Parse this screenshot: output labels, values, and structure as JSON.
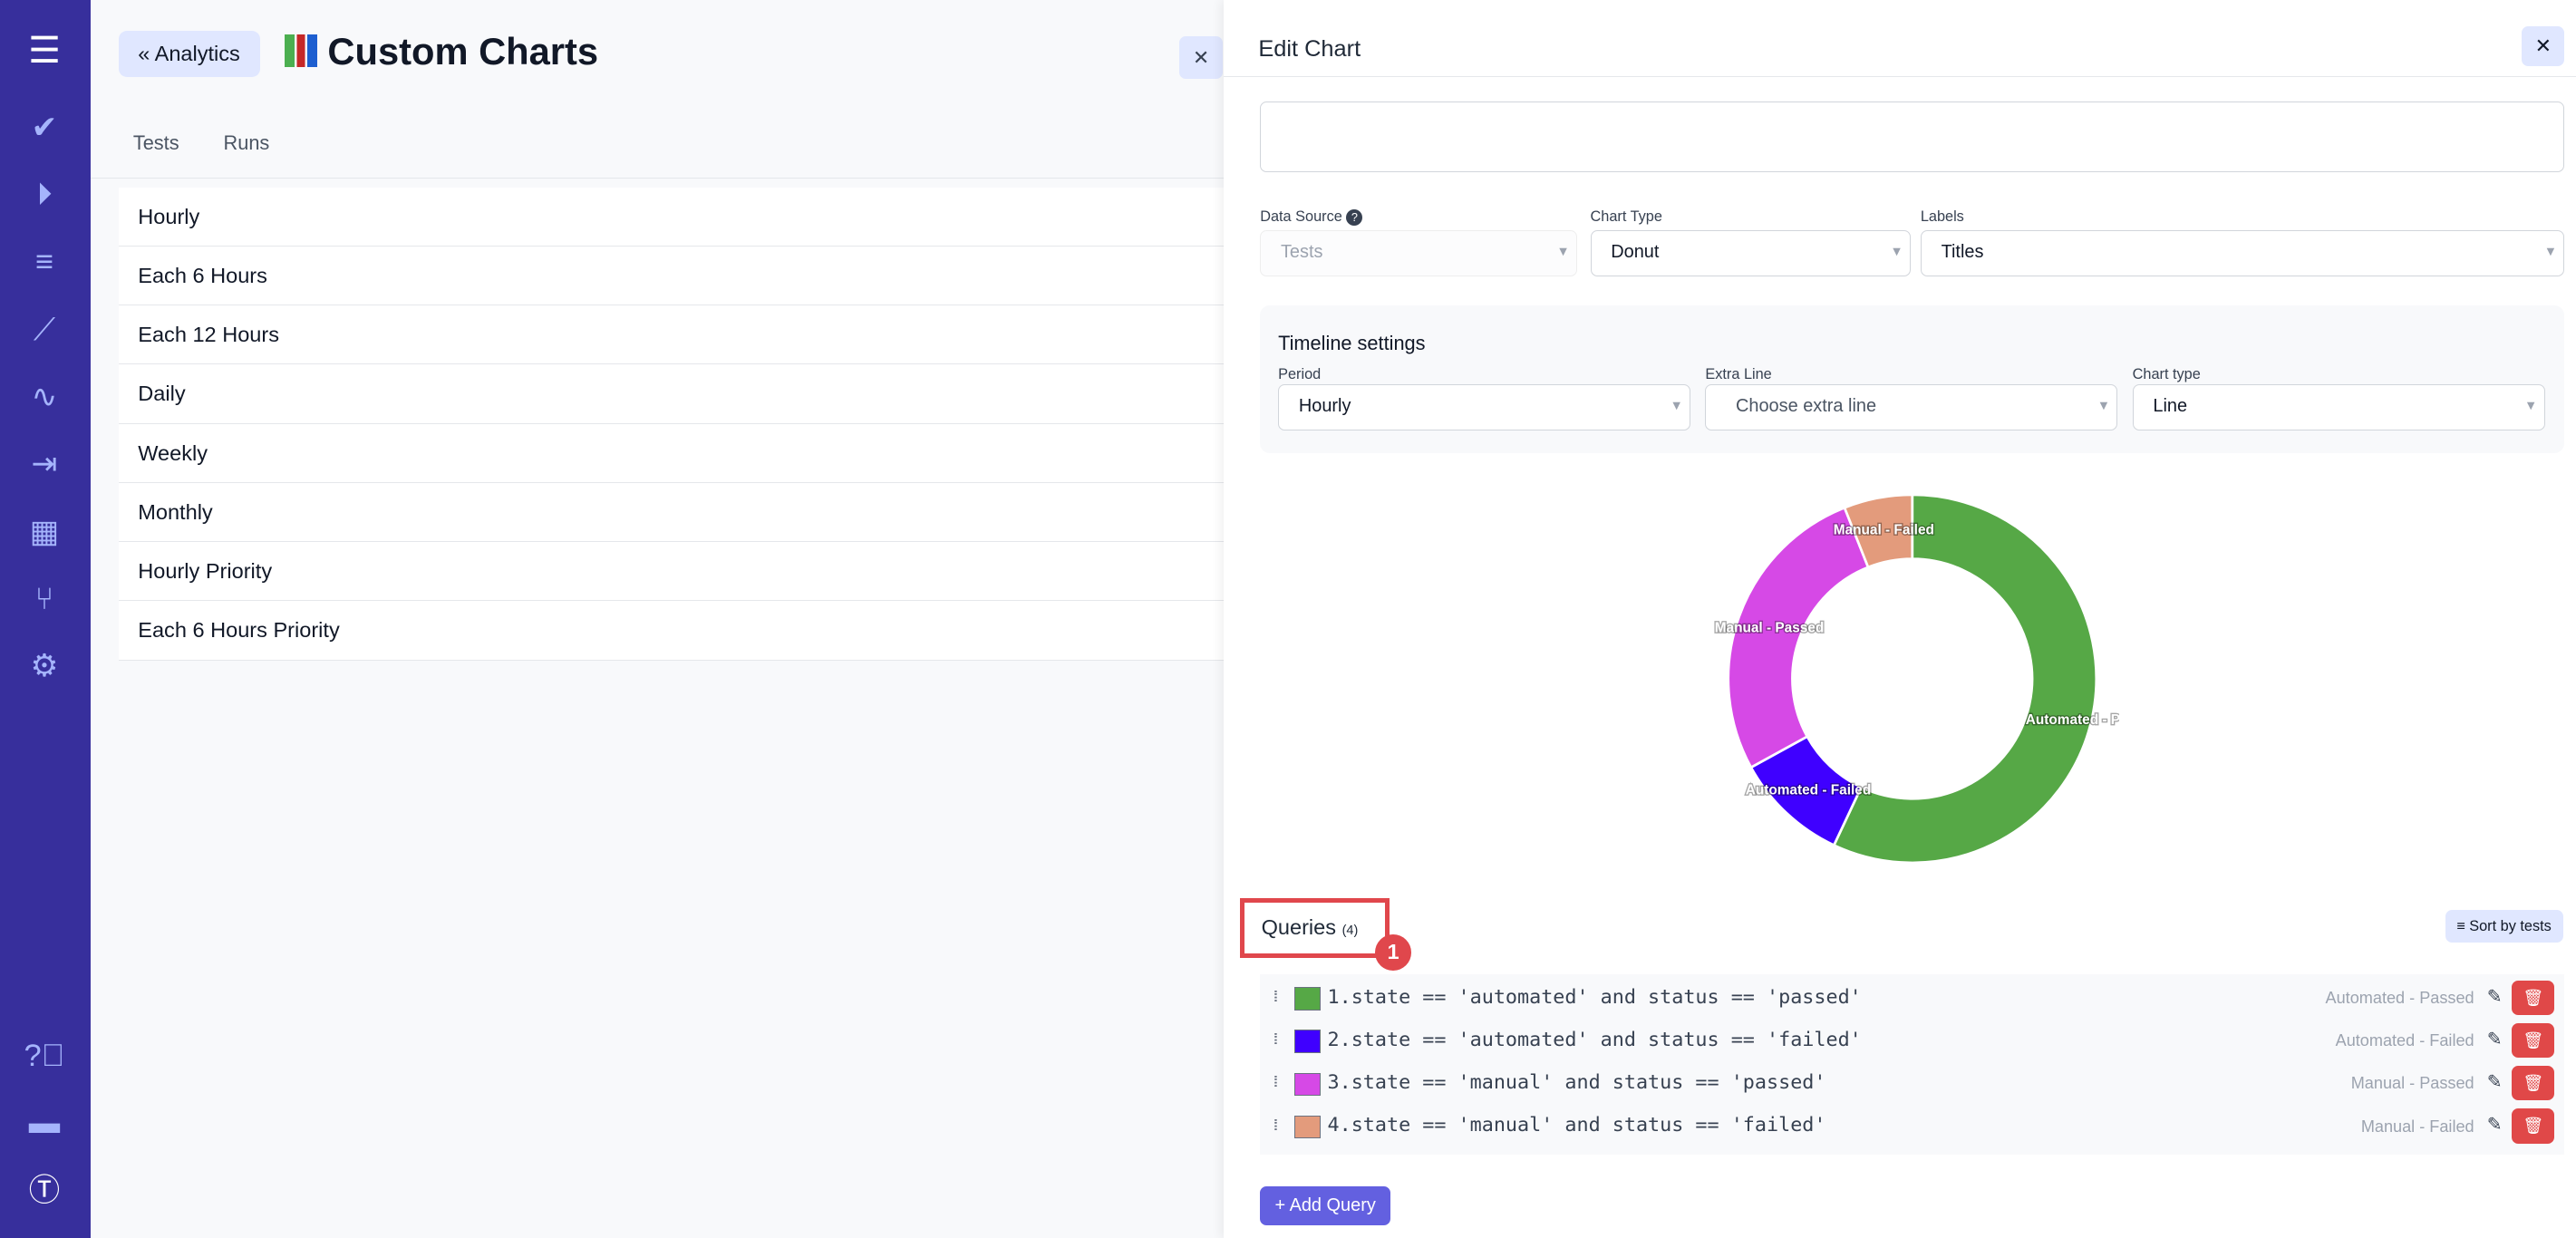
{
  "sidebar": {
    "icons": [
      "menu-icon",
      "check-icon",
      "play-icon",
      "list-check-icon",
      "steps-icon",
      "pulse-icon",
      "import-icon",
      "analytics-icon",
      "branch-icon",
      "gear-icon",
      "help-icon",
      "folder-icon",
      "logo-icon"
    ],
    "color": "#372f9c"
  },
  "header": {
    "back_label": "Analytics",
    "title": "Custom Charts",
    "title_icon": "bar-chart-emoji"
  },
  "tabs": [
    "Tests",
    "Runs"
  ],
  "list": [
    "Hourly",
    "Each 6 Hours",
    "Each 12 Hours",
    "Daily",
    "Weekly",
    "Monthly",
    "Hourly Priority",
    "Each 6 Hours Priority"
  ],
  "panel": {
    "title": "Edit Chart",
    "data_source": {
      "label": "Data Source",
      "value": "Tests"
    },
    "chart_type": {
      "label": "Chart Type",
      "value": "Donut"
    },
    "labels": {
      "label": "Labels",
      "value": "Titles"
    },
    "timeline": {
      "title": "Timeline settings",
      "period_label": "Period",
      "period": "Hourly",
      "extra_label": "Extra Line",
      "extra_placeholder": "Choose extra line",
      "type_label": "Chart type",
      "type": "Line"
    },
    "queries_title": "Queries",
    "queries_count": "(4)",
    "annotation": "1",
    "sort_label": "Sort by tests",
    "queries": [
      {
        "code": "1.state == 'automated' and status == 'passed'",
        "name": "Automated - Passed",
        "color": "#56a846"
      },
      {
        "code": "2.state == 'automated' and status == 'failed'",
        "name": "Automated - Failed",
        "color": "#3f00ff"
      },
      {
        "code": "3.state == 'manual' and status == 'passed'",
        "name": "Manual - Passed",
        "color": "#d649e6"
      },
      {
        "code": "4.state == 'manual' and status == 'failed'",
        "name": "Manual - Failed",
        "color": "#e39b7c"
      }
    ],
    "add_label": "+ Add Query"
  },
  "chart_data": {
    "type": "pie",
    "donut": true,
    "categories": [
      "Automated - Passed",
      "Automated - Failed",
      "Manual - Passed",
      "Manual - Failed"
    ],
    "values": [
      57,
      10,
      27,
      6
    ],
    "colors": [
      "#56a846",
      "#3f00ff",
      "#d649e6",
      "#e39b7c"
    ]
  }
}
